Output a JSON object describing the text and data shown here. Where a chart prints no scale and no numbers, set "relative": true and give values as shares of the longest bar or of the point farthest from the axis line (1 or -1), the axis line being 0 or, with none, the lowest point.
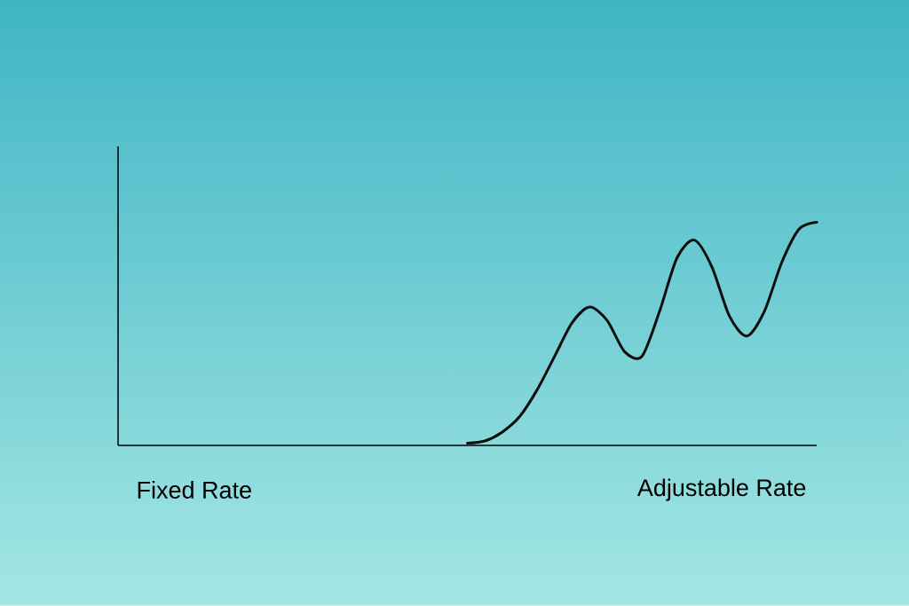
{
  "chart_data": {
    "type": "line",
    "relative": true,
    "categories": [
      null,
      null,
      null,
      null,
      null,
      null,
      null,
      null,
      null,
      null,
      null,
      null,
      null,
      null,
      null,
      null,
      null,
      null,
      null,
      null,
      null,
      null,
      null,
      null,
      null,
      null,
      null,
      null,
      null,
      null,
      null,
      null,
      null,
      null,
      null,
      null,
      null,
      null,
      null,
      null,
      null
    ],
    "series": [
      {
        "color": "#0d0d0d",
        "values": [
          null,
          null,
          null,
          null,
          null,
          null,
          null,
          null,
          null,
          null,
          null,
          null,
          null,
          null,
          null,
          null,
          null,
          null,
          null,
          null,
          0.01,
          0.02,
          0.06,
          0.13,
          0.25,
          0.4,
          0.55,
          0.62,
          0.56,
          0.42,
          0.4,
          0.6,
          0.84,
          0.92,
          0.8,
          0.58,
          0.49,
          0.6,
          0.82,
          0.97,
          1.0
        ]
      }
    ],
    "annotations": [
      "Fixed Rate",
      "Adjustable Rate"
    ],
    "marker": "none",
    "line_style": "solid"
  }
}
